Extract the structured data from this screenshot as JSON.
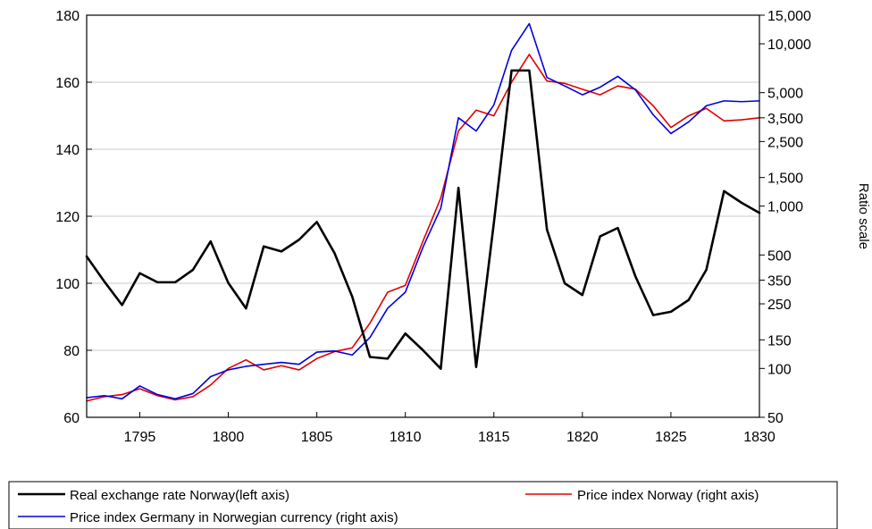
{
  "chart_data": {
    "type": "line",
    "title": "",
    "xlabel": "",
    "ylabel": "",
    "ylabel_right": "Ratio scale",
    "xlim": [
      1792,
      1830
    ],
    "ylim": [
      60,
      180
    ],
    "y2lim": [
      50,
      15000
    ],
    "y2scale": "log",
    "x_ticks": [
      1795,
      1800,
      1805,
      1810,
      1815,
      1820,
      1825,
      1830
    ],
    "y_ticks": [
      60,
      80,
      100,
      120,
      140,
      160,
      180
    ],
    "y2_ticks": [
      {
        "value": 50,
        "label": "50"
      },
      {
        "value": 100,
        "label": "100"
      },
      {
        "value": 150,
        "label": "150"
      },
      {
        "value": 250,
        "label": "250"
      },
      {
        "value": 350,
        "label": "350"
      },
      {
        "value": 500,
        "label": "500"
      },
      {
        "value": 1000,
        "label": "1,000"
      },
      {
        "value": 1500,
        "label": "1,500"
      },
      {
        "value": 2500,
        "label": "2,500"
      },
      {
        "value": 3500,
        "label": "3,500"
      },
      {
        "value": 5000,
        "label": "5,000"
      },
      {
        "value": 10000,
        "label": "10,000"
      },
      {
        "value": 15000,
        "label": "15,000"
      }
    ],
    "grid": "horizontal",
    "legend_position": "bottom",
    "x": [
      1792,
      1793,
      1794,
      1795,
      1796,
      1797,
      1798,
      1799,
      1800,
      1801,
      1802,
      1803,
      1804,
      1805,
      1806,
      1807,
      1808,
      1809,
      1810,
      1811,
      1812,
      1813,
      1814,
      1815,
      1816,
      1817,
      1818,
      1819,
      1820,
      1821,
      1822,
      1823,
      1824,
      1825,
      1826,
      1827,
      1828,
      1829,
      1830
    ],
    "series": [
      {
        "name": "Real exchange rate Norway(left axis)",
        "axis": "left",
        "color": "#000000",
        "values": [
          108,
          100.5,
          93.5,
          103,
          100.3,
          100.3,
          104,
          112.5,
          100.1,
          92.5,
          111,
          109.5,
          113,
          118.3,
          109,
          96,
          78,
          77.5,
          85,
          80,
          74.5,
          128.5,
          75,
          118,
          163.5,
          163.5,
          116,
          100,
          96.5,
          114,
          116.5,
          102,
          90.5,
          91.5,
          95,
          104,
          127.5,
          124,
          121
        ]
      },
      {
        "name": "Price index Norway (right axis)",
        "axis": "right",
        "color": "#e00000",
        "values": [
          63,
          67,
          69,
          75,
          68,
          64,
          67,
          79,
          100,
          113,
          98,
          104,
          98,
          115,
          127,
          134,
          190,
          295,
          325,
          610,
          1120,
          2900,
          3900,
          3600,
          5800,
          8600,
          5900,
          5700,
          5250,
          4850,
          5500,
          5250,
          4150,
          3050,
          3600,
          4000,
          3350,
          3400,
          3500
        ]
      },
      {
        "name": "Price index Germany in Norwegian currency (right axis)",
        "axis": "right",
        "color": "#0000e0",
        "values": [
          66,
          68,
          65,
          78,
          69,
          65,
          70,
          89,
          98,
          103,
          106,
          109,
          106,
          126,
          128,
          121,
          155,
          235,
          295,
          560,
          970,
          3500,
          2900,
          4200,
          9100,
          13300,
          6200,
          5500,
          4850,
          5400,
          6300,
          5200,
          3650,
          2800,
          3300,
          4150,
          4450,
          4400,
          4450
        ]
      }
    ]
  }
}
